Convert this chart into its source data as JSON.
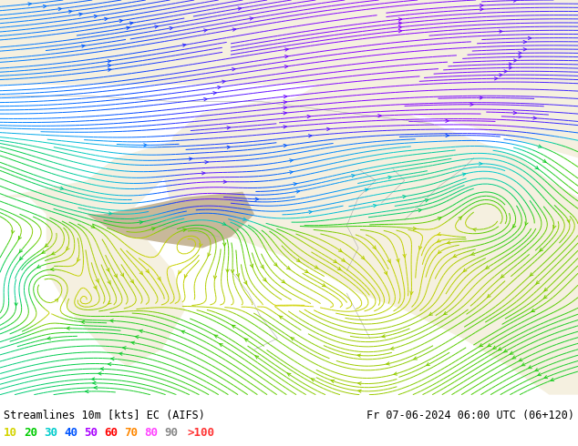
{
  "title_left": "Streamlines 10m [kts] EC (AIFS)",
  "title_right": "Fr 07-06-2024 06:00 UTC (06+120)",
  "legend_labels": [
    "10",
    "20",
    "30",
    "40",
    "50",
    "60",
    "70",
    "80",
    "90",
    ">100"
  ],
  "legend_colors": [
    "#d4d400",
    "#00cc00",
    "#00cccc",
    "#0055ff",
    "#aa00ff",
    "#ff0000",
    "#ff8800",
    "#ff44ff",
    "#888888",
    "#ff3333"
  ],
  "ocean_color": "#c5dff0",
  "land_color": "#f5f0e0",
  "tibet_color": "#c8b89a",
  "text_color": "#000000",
  "figsize": [
    6.34,
    4.9
  ],
  "dpi": 100,
  "map_xlim": [
    60,
    160
  ],
  "map_ylim": [
    0,
    70
  ],
  "streamline_cmap_colors": [
    "#d4d400",
    "#aacc00",
    "#44cc00",
    "#00cc44",
    "#00cccc",
    "#0088ff",
    "#0044ff",
    "#8800ff"
  ],
  "streamline_cmap_vals": [
    0.0,
    0.15,
    0.3,
    0.45,
    0.6,
    0.72,
    0.85,
    1.0
  ]
}
